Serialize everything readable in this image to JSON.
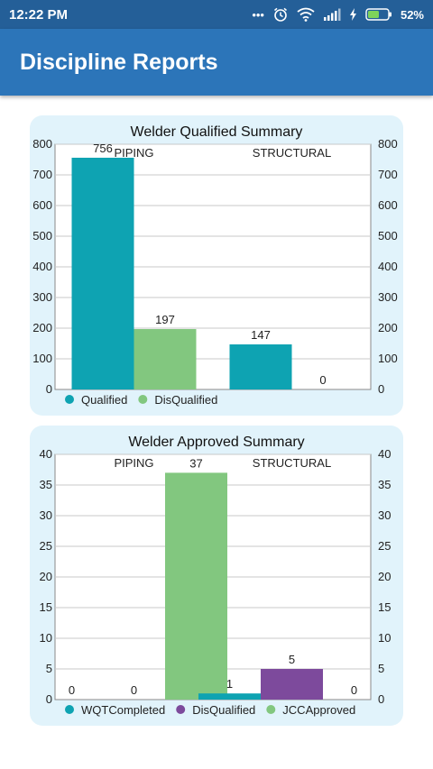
{
  "status_bar": {
    "time": "12:22 PM",
    "dots": "•••",
    "alarm_icon": "alarm-icon",
    "wifi_icon": "wifi-icon",
    "signal_icon": "signal-icon",
    "charging_icon": "charging-icon",
    "battery_percent": "52%"
  },
  "app_bar": {
    "title": "Discipline Reports"
  },
  "chart_data": [
    {
      "type": "bar",
      "title": "Welder Qualified Summary",
      "categories": [
        "PIPING",
        "STRUCTURAL"
      ],
      "series": [
        {
          "name": "Qualified",
          "values": [
            756,
            147
          ],
          "color": "#0ea3b2"
        },
        {
          "name": "DisQualified",
          "values": [
            197,
            0
          ],
          "color": "#82c77f"
        }
      ],
      "ylim": [
        0,
        800
      ],
      "yticks": [
        0,
        100,
        200,
        300,
        400,
        500,
        600,
        700,
        800
      ],
      "grid": true,
      "legend": "bottom-left"
    },
    {
      "type": "bar",
      "title": "Welder Approved Summary",
      "categories": [
        "PIPING",
        "STRUCTURAL"
      ],
      "series": [
        {
          "name": "WQTCompleted",
          "values": [
            0,
            1
          ],
          "color": "#0ea3b2"
        },
        {
          "name": "DisQualified",
          "values": [
            0,
            5
          ],
          "color": "#7d4a9c"
        },
        {
          "name": "JCCApproved",
          "values": [
            37,
            0
          ],
          "color": "#82c77f"
        }
      ],
      "ylim": [
        0,
        40
      ],
      "yticks": [
        0,
        5,
        10,
        15,
        20,
        25,
        30,
        35,
        40
      ],
      "grid": true,
      "legend": "bottom-left"
    }
  ]
}
